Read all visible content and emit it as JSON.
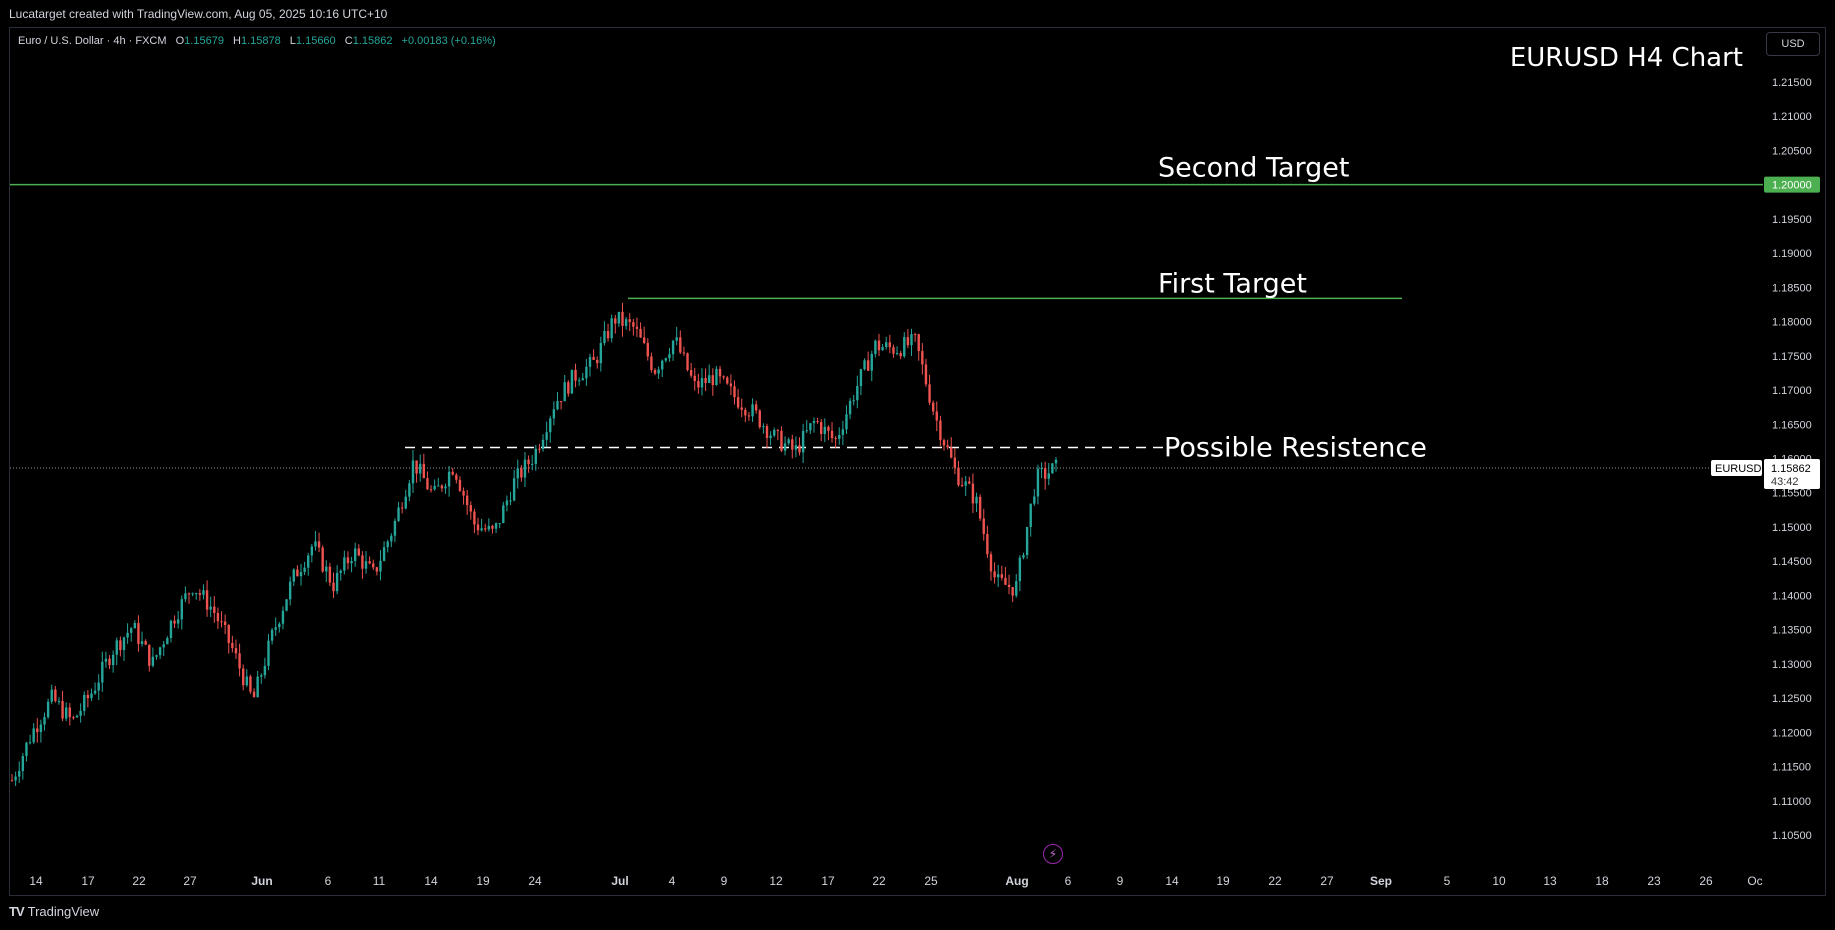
{
  "topbar": {
    "text": "Lucatarget created with TradingView.com, Aug 05, 2025 10:16 UTC+10"
  },
  "legend": {
    "symbol": "Euro / U.S. Dollar · 4h · FXCM",
    "o_label": "O",
    "o_value": "1.15679",
    "h_label": "H",
    "h_value": "1.15878",
    "l_label": "L",
    "l_value": "1.15660",
    "c_label": "C",
    "c_value": "1.15862",
    "change": "+0.00183 (+0.16%)"
  },
  "currency_button": "USD",
  "footer": {
    "logo_mark": "TV",
    "logo_text": "TradingView"
  },
  "colors": {
    "up": "#26a69a",
    "down": "#ef5350",
    "target_line": "#4caf50",
    "grid": "#000000"
  },
  "chart_data": {
    "type": "candlestick",
    "title": "EURUSD H4 Chart",
    "y_ticks": [
      "1.21500",
      "1.21000",
      "1.20500",
      "1.20000",
      "1.19500",
      "1.19000",
      "1.18500",
      "1.18000",
      "1.17500",
      "1.17000",
      "1.16500",
      "1.16000",
      "1.15500",
      "1.15000",
      "1.14500",
      "1.14000",
      "1.13500",
      "1.13000",
      "1.12500",
      "1.12000",
      "1.11500",
      "1.11000",
      "1.10500"
    ],
    "x_ticks": [
      "14",
      "17",
      "22",
      "27",
      "Jun",
      "6",
      "11",
      "14",
      "19",
      "24",
      "Jul",
      "4",
      "9",
      "12",
      "17",
      "22",
      "25",
      "Aug",
      "6",
      "9",
      "14",
      "19",
      "22",
      "27",
      "Sep",
      "5",
      "10",
      "13",
      "18",
      "23",
      "26",
      "Oc"
    ],
    "ylim": [
      1.101,
      1.2195
    ],
    "annotations": [
      {
        "label": "Second Target",
        "price": 1.2
      },
      {
        "label": "First Target",
        "price": 1.1834
      },
      {
        "label": "Possible Resistence",
        "price": 1.1616
      }
    ],
    "price_labels": [
      {
        "text": "1.20000",
        "price": 1.2
      },
      {
        "symbol": "EURUSD",
        "text": "1.15862",
        "countdown": "43:42",
        "price": 1.15862
      }
    ],
    "price_path": [
      [
        "May 12",
        1.113
      ],
      [
        "May 14",
        1.12
      ],
      [
        "May 16",
        1.125
      ],
      [
        "May 19",
        1.1215
      ],
      [
        "May 21",
        1.126
      ],
      [
        "May 23",
        1.132
      ],
      [
        "May 26",
        1.1355
      ],
      [
        "May 28",
        1.13
      ],
      [
        "May 30",
        1.1365
      ],
      [
        "Jun 2",
        1.1415
      ],
      [
        "Jun 3",
        1.138
      ],
      [
        "Jun 4",
        1.132
      ],
      [
        "Jun 5",
        1.1245
      ],
      [
        "Jun 6",
        1.1345
      ],
      [
        "Jun 9",
        1.1425
      ],
      [
        "Jun 11",
        1.1475
      ],
      [
        "Jun 13",
        1.1415
      ],
      [
        "Jun 16",
        1.1465
      ],
      [
        "Jun 18",
        1.143
      ],
      [
        "Jun 19",
        1.15
      ],
      [
        "Jun 20",
        1.1595
      ],
      [
        "Jun 23",
        1.1545
      ],
      [
        "Jun 25",
        1.159
      ],
      [
        "Jun 26",
        1.1505
      ],
      [
        "Jun 27",
        1.149
      ],
      [
        "Jun 30",
        1.1565
      ],
      [
        "Jul 1",
        1.1605
      ],
      [
        "Jul 2",
        1.168
      ],
      [
        "Jul 3",
        1.172
      ],
      [
        "Jul 4",
        1.174
      ],
      [
        "Jul 7",
        1.1805
      ],
      [
        "Jul 8",
        1.179
      ],
      [
        "Jul 9",
        1.173
      ],
      [
        "Jul 10",
        1.1775
      ],
      [
        "Jul 11",
        1.1705
      ],
      [
        "Jul 14",
        1.172
      ],
      [
        "Jul 15",
        1.169
      ],
      [
        "Jul 16",
        1.1665
      ],
      [
        "Jul 17",
        1.163
      ],
      [
        "Jul 18",
        1.161
      ],
      [
        "Jul 21",
        1.1655
      ],
      [
        "Jul 22",
        1.1625
      ],
      [
        "Jul 23",
        1.17
      ],
      [
        "Jul 24",
        1.1765
      ],
      [
        "Jul 25",
        1.176
      ],
      [
        "Jul 28",
        1.177
      ],
      [
        "Jul 29",
        1.166
      ],
      [
        "Jul 30",
        1.158
      ],
      [
        "Jul 31",
        1.154
      ],
      [
        "Aug 1",
        1.142
      ],
      [
        "Aug 1b",
        1.141
      ],
      [
        "Aug 4",
        1.157
      ],
      [
        "Aug 5",
        1.1586
      ]
    ]
  }
}
